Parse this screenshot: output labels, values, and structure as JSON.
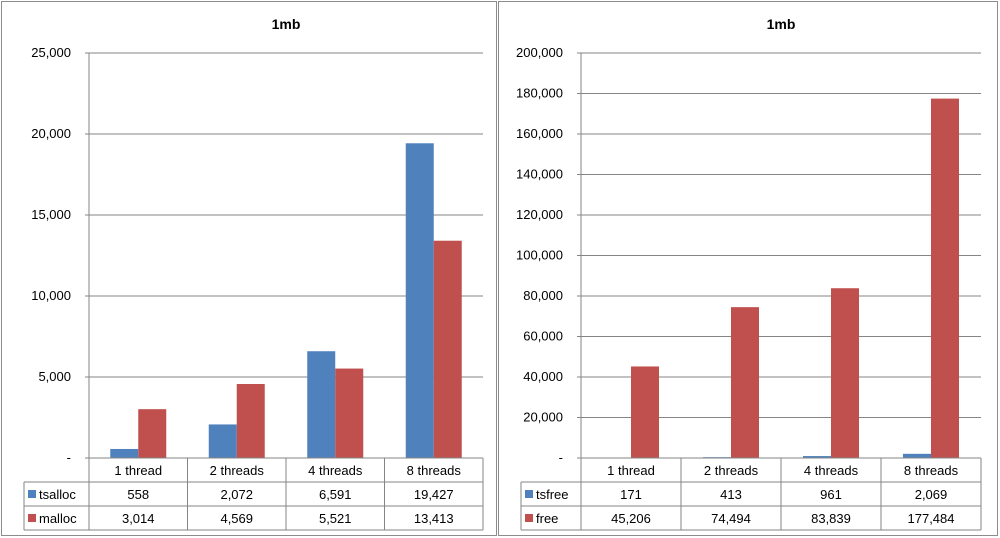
{
  "chart_data": [
    {
      "type": "bar",
      "title": "1mb",
      "categories": [
        "1 thread",
        "2 threads",
        "4 threads",
        "8 threads"
      ],
      "series": [
        {
          "name": "tsalloc",
          "color": "#4f81bd",
          "values": [
            558,
            2072,
            6591,
            19427
          ],
          "labels": [
            "558",
            "2,072",
            "6,591",
            "19,427"
          ]
        },
        {
          "name": "malloc",
          "color": "#c0504d",
          "values": [
            3014,
            4569,
            5521,
            13413
          ],
          "labels": [
            "3,014",
            "4,569",
            "5,521",
            "13,413"
          ]
        }
      ],
      "ylim": [
        0,
        25000
      ],
      "yticks": [
        0,
        5000,
        10000,
        15000,
        20000,
        25000
      ],
      "ytick_labels": [
        "-",
        "5,000",
        "10,000",
        "15,000",
        "20,000",
        "25,000"
      ],
      "grid": true,
      "legend": "data-table"
    },
    {
      "type": "bar",
      "title": "1mb",
      "categories": [
        "1 thread",
        "2 threads",
        "4 threads",
        "8 threads"
      ],
      "series": [
        {
          "name": "tsfree",
          "color": "#4f81bd",
          "values": [
            171,
            413,
            961,
            2069
          ],
          "labels": [
            "171",
            "413",
            "961",
            "2,069"
          ]
        },
        {
          "name": "free",
          "color": "#c0504d",
          "values": [
            45206,
            74494,
            83839,
            177484
          ],
          "labels": [
            "45,206",
            "74,494",
            "83,839",
            "177,484"
          ]
        }
      ],
      "ylim": [
        0,
        200000
      ],
      "yticks": [
        0,
        20000,
        40000,
        60000,
        80000,
        100000,
        120000,
        140000,
        160000,
        180000,
        200000
      ],
      "ytick_labels": [
        "-",
        "20,000",
        "40,000",
        "60,000",
        "80,000",
        "100,000",
        "120,000",
        "140,000",
        "160,000",
        "180,000",
        "200,000"
      ],
      "grid": true,
      "legend": "data-table"
    }
  ]
}
